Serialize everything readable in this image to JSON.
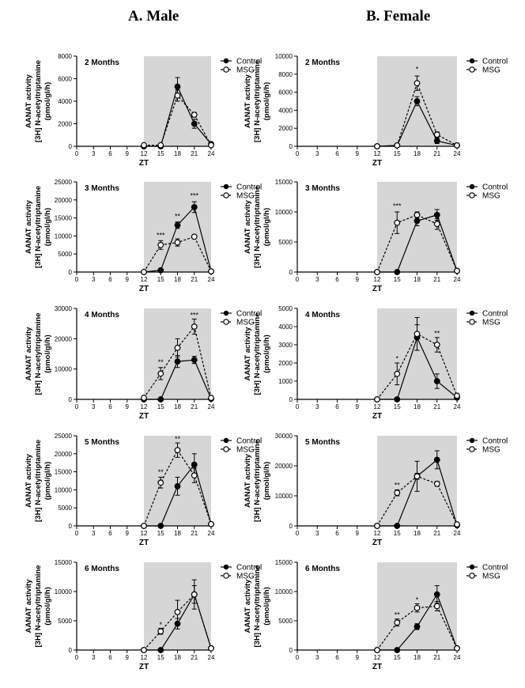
{
  "columns": [
    {
      "id": "male",
      "title": "A. Male"
    },
    {
      "id": "female",
      "title": "B. Female"
    }
  ],
  "legend": {
    "control": "Control",
    "msg": "MSG"
  },
  "chart_data": [
    {
      "type": "line",
      "column": "male",
      "title": "2 Months",
      "xlabel": "ZT",
      "ylabel": [
        "AANAT activity",
        "[3H] N-acetyltriptamine",
        "(pmol/gl/h)"
      ],
      "x": [
        0,
        3,
        6,
        9,
        12,
        15,
        18,
        21,
        24
      ],
      "xlim": [
        0,
        24
      ],
      "ylim": [
        0,
        8000
      ],
      "yticks": [
        0,
        2000,
        4000,
        6000,
        8000
      ],
      "shaded_x": [
        12,
        24
      ],
      "series": [
        {
          "name": "Control",
          "x": [
            12,
            15,
            18,
            21,
            24
          ],
          "y": [
            0,
            0,
            5300,
            2000,
            200
          ],
          "err": [
            0,
            0,
            800,
            400,
            100
          ]
        },
        {
          "name": "MSG",
          "x": [
            12,
            15,
            18,
            21,
            24
          ],
          "y": [
            100,
            100,
            4500,
            2800,
            100
          ],
          "err": [
            0,
            0,
            500,
            200,
            0
          ]
        }
      ],
      "annotations": []
    },
    {
      "type": "line",
      "column": "female",
      "title": "2 Months",
      "xlabel": "ZT",
      "ylabel": [
        "AANAT activity",
        "[3H] N-acetyltriptamine",
        "(pmol/gl/h)"
      ],
      "x": [
        0,
        3,
        6,
        9,
        12,
        15,
        18,
        21,
        24
      ],
      "xlim": [
        0,
        24
      ],
      "ylim": [
        0,
        10000
      ],
      "yticks": [
        0,
        2000,
        4000,
        6000,
        8000,
        10000
      ],
      "shaded_x": [
        12,
        24
      ],
      "series": [
        {
          "name": "Control",
          "x": [
            12,
            15,
            18,
            21,
            24
          ],
          "y": [
            0,
            100,
            5000,
            600,
            100
          ],
          "err": [
            0,
            0,
            500,
            300,
            0
          ]
        },
        {
          "name": "MSG",
          "x": [
            12,
            15,
            18,
            21,
            24
          ],
          "y": [
            0,
            100,
            7000,
            1300,
            100
          ],
          "err": [
            0,
            0,
            800,
            300,
            0
          ]
        }
      ],
      "annotations": [
        {
          "x": 18,
          "y": 8300,
          "text": "*"
        }
      ]
    },
    {
      "type": "line",
      "column": "male",
      "title": "3 Months",
      "xlabel": "ZT",
      "ylabel": [
        "AANAT activity",
        "[3H] N-acetyltriptamine",
        "(pmol/gl/h)"
      ],
      "x": [
        0,
        3,
        6,
        9,
        12,
        15,
        18,
        21,
        24
      ],
      "xlim": [
        0,
        24
      ],
      "ylim": [
        0,
        25000
      ],
      "yticks": [
        0,
        5000,
        10000,
        15000,
        20000,
        25000
      ],
      "shaded_x": [
        12,
        24
      ],
      "series": [
        {
          "name": "Control",
          "x": [
            12,
            15,
            18,
            21,
            24
          ],
          "y": [
            0,
            500,
            13000,
            18000,
            200
          ],
          "err": [
            0,
            0,
            900,
            1500,
            0
          ]
        },
        {
          "name": "MSG",
          "x": [
            12,
            15,
            18,
            21,
            24
          ],
          "y": [
            0,
            7500,
            8200,
            9800,
            200
          ],
          "err": [
            0,
            1200,
            1000,
            300,
            0
          ]
        }
      ],
      "annotations": [
        {
          "x": 15,
          "y": 9500,
          "text": "***"
        },
        {
          "x": 18,
          "y": 14800,
          "text": "**"
        },
        {
          "x": 21,
          "y": 20500,
          "text": "***"
        }
      ]
    },
    {
      "type": "line",
      "column": "female",
      "title": "3 Months",
      "xlabel": "ZT",
      "ylabel": [
        "AANAT activity",
        "[3H] N-acetyltriptamine",
        "(pmol/gl/h)"
      ],
      "x": [
        0,
        3,
        6,
        9,
        12,
        15,
        18,
        21,
        24
      ],
      "xlim": [
        0,
        24
      ],
      "ylim": [
        0,
        15000
      ],
      "yticks": [
        0,
        5000,
        10000,
        15000
      ],
      "shaded_x": [
        12,
        24
      ],
      "series": [
        {
          "name": "Control",
          "x": [
            12,
            15,
            18,
            21,
            24
          ],
          "y": [
            0,
            0,
            8500,
            9500,
            200
          ],
          "err": [
            0,
            0,
            800,
            900,
            0
          ]
        },
        {
          "name": "MSG",
          "x": [
            12,
            15,
            18,
            21,
            24
          ],
          "y": [
            0,
            8200,
            9500,
            8000,
            200
          ],
          "err": [
            0,
            1800,
            500,
            900,
            0
          ]
        }
      ],
      "annotations": [
        {
          "x": 15,
          "y": 10600,
          "text": "***"
        }
      ]
    },
    {
      "type": "line",
      "column": "male",
      "title": "4 Months",
      "xlabel": "ZT",
      "ylabel": [
        "AANAT activity",
        "[3H] N-acetyltriptamine",
        "(pmol/gl/h)"
      ],
      "x": [
        0,
        3,
        6,
        9,
        12,
        15,
        18,
        21,
        24
      ],
      "xlim": [
        0,
        24
      ],
      "ylim": [
        0,
        30000
      ],
      "yticks": [
        0,
        10000,
        20000,
        30000
      ],
      "shaded_x": [
        12,
        24
      ],
      "series": [
        {
          "name": "Control",
          "x": [
            12,
            15,
            18,
            21,
            24
          ],
          "y": [
            0,
            0,
            12500,
            13000,
            200
          ],
          "err": [
            0,
            0,
            2000,
            1200,
            0
          ]
        },
        {
          "name": "MSG",
          "x": [
            12,
            15,
            18,
            21,
            24
          ],
          "y": [
            500,
            8500,
            17000,
            24000,
            500
          ],
          "err": [
            0,
            2000,
            3000,
            2500,
            0
          ]
        }
      ],
      "annotations": [
        {
          "x": 15,
          "y": 11500,
          "text": "**"
        },
        {
          "x": 21,
          "y": 27000,
          "text": "***"
        }
      ]
    },
    {
      "type": "line",
      "column": "female",
      "title": "4 Months",
      "xlabel": "ZT",
      "ylabel": [
        "AANAT activity",
        "[3H] N-acetyltriptamine",
        "(pmol/gl/h)"
      ],
      "x": [
        0,
        3,
        6,
        9,
        12,
        15,
        18,
        21,
        24
      ],
      "xlim": [
        0,
        24
      ],
      "ylim": [
        0,
        5000
      ],
      "yticks": [
        0,
        1000,
        2000,
        3000,
        4000,
        5000
      ],
      "shaded_x": [
        12,
        24
      ],
      "series": [
        {
          "name": "Control",
          "x": [
            12,
            15,
            18,
            21,
            24
          ],
          "y": [
            0,
            0,
            3400,
            1000,
            100
          ],
          "err": [
            0,
            0,
            700,
            400,
            0
          ]
        },
        {
          "name": "MSG",
          "x": [
            12,
            15,
            18,
            21,
            24
          ],
          "y": [
            0,
            1400,
            3600,
            3000,
            200
          ],
          "err": [
            0,
            600,
            900,
            400,
            0
          ]
        }
      ],
      "annotations": [
        {
          "x": 15,
          "y": 2100,
          "text": "*"
        },
        {
          "x": 21,
          "y": 3500,
          "text": "**"
        }
      ]
    },
    {
      "type": "line",
      "column": "male",
      "title": "5 Months",
      "xlabel": "ZT",
      "ylabel": [
        "AANAT activity",
        "[3H] N-acetyltriptamine",
        "(pmol/gl/h)"
      ],
      "x": [
        0,
        3,
        6,
        9,
        12,
        15,
        18,
        21,
        24
      ],
      "xlim": [
        0,
        24
      ],
      "ylim": [
        0,
        25000
      ],
      "yticks": [
        0,
        5000,
        10000,
        15000,
        20000,
        25000
      ],
      "shaded_x": [
        12,
        24
      ],
      "series": [
        {
          "name": "Control",
          "x": [
            12,
            15,
            18,
            21,
            24
          ],
          "y": [
            0,
            0,
            11000,
            17000,
            500
          ],
          "err": [
            0,
            0,
            2500,
            3000,
            0
          ]
        },
        {
          "name": "MSG",
          "x": [
            12,
            15,
            18,
            21,
            24
          ],
          "y": [
            0,
            12000,
            21000,
            14000,
            500
          ],
          "err": [
            0,
            1500,
            2000,
            2000,
            0
          ]
        }
      ],
      "annotations": [
        {
          "x": 15,
          "y": 14200,
          "text": "**"
        },
        {
          "x": 18,
          "y": 23500,
          "text": "**"
        }
      ]
    },
    {
      "type": "line",
      "column": "female",
      "title": "5 Months",
      "xlabel": "ZT",
      "ylabel": [
        "AANAT activity",
        "[3H] N-acetyltriptamine",
        "(pmol/gl/h)"
      ],
      "x": [
        0,
        3,
        6,
        9,
        12,
        15,
        18,
        21,
        24
      ],
      "xlim": [
        0,
        24
      ],
      "ylim": [
        0,
        30000
      ],
      "yticks": [
        0,
        10000,
        20000,
        30000
      ],
      "shaded_x": [
        12,
        24
      ],
      "series": [
        {
          "name": "Control",
          "x": [
            12,
            15,
            18,
            21,
            24
          ],
          "y": [
            0,
            0,
            16500,
            22000,
            200
          ],
          "err": [
            0,
            0,
            5000,
            3000,
            0
          ]
        },
        {
          "name": "MSG",
          "x": [
            12,
            15,
            18,
            21,
            24
          ],
          "y": [
            0,
            11000,
            16500,
            14000,
            500
          ],
          "err": [
            0,
            1000,
            1000,
            800,
            0
          ]
        }
      ],
      "annotations": [
        {
          "x": 15,
          "y": 12800,
          "text": "**"
        }
      ]
    },
    {
      "type": "line",
      "column": "male",
      "title": "6 Months",
      "xlabel": "ZT",
      "ylabel": [
        "AANAT activity",
        "[3H] N-acetyltriptamine",
        "(pmol/gl/h)"
      ],
      "x": [
        0,
        3,
        6,
        9,
        12,
        15,
        18,
        21,
        24
      ],
      "xlim": [
        0,
        24
      ],
      "ylim": [
        0,
        15000
      ],
      "yticks": [
        0,
        5000,
        10000,
        15000
      ],
      "shaded_x": [
        12,
        24
      ],
      "series": [
        {
          "name": "Control",
          "x": [
            12,
            15,
            18,
            21,
            24
          ],
          "y": [
            0,
            0,
            4500,
            9500,
            300
          ],
          "err": [
            0,
            0,
            900,
            2500,
            0
          ]
        },
        {
          "name": "MSG",
          "x": [
            12,
            15,
            18,
            21,
            24
          ],
          "y": [
            0,
            3200,
            6500,
            9500,
            300
          ],
          "err": [
            0,
            500,
            2000,
            1500,
            0
          ]
        }
      ],
      "annotations": [
        {
          "x": 15,
          "y": 3900,
          "text": "*"
        }
      ]
    },
    {
      "type": "line",
      "column": "female",
      "title": "6 Months",
      "xlabel": "ZT",
      "ylabel": [
        "AANAT activity",
        "[3H] N-acetyltriptamine",
        "(pmol/gl/h)"
      ],
      "x": [
        0,
        3,
        6,
        9,
        12,
        15,
        18,
        21,
        24
      ],
      "xlim": [
        0,
        24
      ],
      "ylim": [
        0,
        15000
      ],
      "yticks": [
        0,
        5000,
        10000,
        15000
      ],
      "shaded_x": [
        12,
        24
      ],
      "series": [
        {
          "name": "Control",
          "x": [
            12,
            15,
            18,
            21,
            24
          ],
          "y": [
            0,
            0,
            4000,
            9500,
            300
          ],
          "err": [
            0,
            0,
            500,
            1500,
            0
          ]
        },
        {
          "name": "MSG",
          "x": [
            12,
            15,
            18,
            21,
            24
          ],
          "y": [
            0,
            4700,
            7200,
            7500,
            300
          ],
          "err": [
            0,
            600,
            700,
            800,
            0
          ]
        }
      ],
      "annotations": [
        {
          "x": 15,
          "y": 5600,
          "text": "**"
        },
        {
          "x": 18,
          "y": 8200,
          "text": "*"
        }
      ]
    }
  ]
}
